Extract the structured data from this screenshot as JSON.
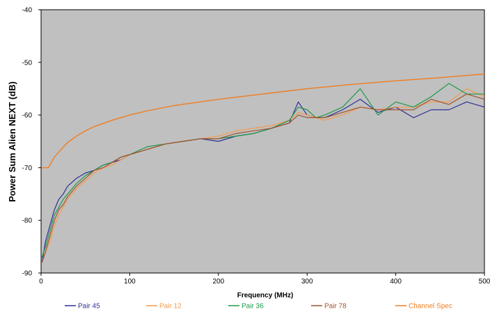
{
  "chart_data": {
    "type": "line",
    "title": "",
    "xlabel": "Frequency (MHz)",
    "ylabel": "Power Sum Alien NEXT (dB)",
    "xlim": [
      0,
      500
    ],
    "ylim": [
      -90,
      -40
    ],
    "x_ticks": [
      "0",
      "100",
      "200",
      "300",
      "400",
      "500"
    ],
    "y_ticks": [
      "-40",
      "-50",
      "-60",
      "-70",
      "-80",
      "-90"
    ],
    "grid": false,
    "plot_background": "#c0c0c0",
    "legend_position": "bottom",
    "series": [
      {
        "name": "Pair 45",
        "color": "#2e2e99",
        "x": [
          1,
          5,
          10,
          15,
          20,
          25,
          30,
          40,
          50,
          60,
          70,
          80,
          90,
          100,
          120,
          140,
          160,
          180,
          200,
          220,
          240,
          260,
          280,
          290,
          300,
          310,
          320,
          340,
          360,
          380,
          400,
          420,
          440,
          460,
          480,
          500
        ],
        "y": [
          -88,
          -84,
          -81,
          -78,
          -76,
          -75,
          -73.5,
          -72,
          -71,
          -70.5,
          -69.5,
          -69,
          -68.5,
          -67.5,
          -66.5,
          -65.5,
          -65,
          -64.5,
          -65,
          -64,
          -63.5,
          -62.5,
          -61.5,
          -57.5,
          -60,
          -60.5,
          -60.5,
          -59,
          -57,
          -59.5,
          -58.5,
          -60.5,
          -59,
          -59,
          -57.5,
          -58.5
        ]
      },
      {
        "name": "Pair 12",
        "color": "#f39a4c",
        "x": [
          1,
          5,
          10,
          15,
          20,
          25,
          30,
          40,
          50,
          60,
          70,
          80,
          90,
          100,
          120,
          140,
          160,
          180,
          200,
          220,
          240,
          260,
          280,
          290,
          300,
          310,
          320,
          340,
          360,
          380,
          400,
          420,
          440,
          460,
          480,
          500
        ],
        "y": [
          -88,
          -86,
          -84,
          -81,
          -79,
          -77.5,
          -76,
          -74,
          -72.5,
          -71,
          -70,
          -69.5,
          -68.5,
          -67.5,
          -66.5,
          -65.5,
          -65,
          -64.5,
          -64,
          -63,
          -62.5,
          -62,
          -61,
          -59.5,
          -60,
          -60.5,
          -61,
          -60,
          -58.5,
          -59,
          -58.5,
          -58.5,
          -57.5,
          -57.5,
          -55,
          -56.5
        ]
      },
      {
        "name": "Pair 36",
        "color": "#1a9a4a",
        "x": [
          1,
          5,
          10,
          15,
          20,
          25,
          30,
          40,
          50,
          60,
          70,
          80,
          90,
          100,
          120,
          140,
          160,
          180,
          200,
          220,
          240,
          260,
          280,
          290,
          300,
          310,
          320,
          340,
          360,
          380,
          400,
          420,
          440,
          460,
          480,
          500
        ],
        "y": [
          -87,
          -85,
          -82,
          -79,
          -77.5,
          -76,
          -75,
          -73,
          -71.5,
          -70.5,
          -69.5,
          -69,
          -68,
          -67.5,
          -66,
          -65.5,
          -65,
          -64.5,
          -64.5,
          -64,
          -63.5,
          -62.5,
          -61,
          -58.5,
          -59,
          -60.5,
          -60,
          -58.5,
          -55,
          -60,
          -57.5,
          -58.5,
          -56.5,
          -54,
          -56,
          -56
        ]
      },
      {
        "name": "Pair 78",
        "color": "#a3522b",
        "x": [
          1,
          5,
          10,
          15,
          20,
          25,
          30,
          40,
          50,
          60,
          70,
          80,
          90,
          100,
          120,
          140,
          160,
          180,
          200,
          220,
          240,
          260,
          280,
          290,
          300,
          310,
          320,
          340,
          360,
          380,
          400,
          420,
          440,
          460,
          480,
          500
        ],
        "y": [
          -88,
          -86,
          -83,
          -80,
          -78,
          -77,
          -75.5,
          -73.5,
          -72,
          -70.5,
          -70,
          -69,
          -68,
          -67.5,
          -66.5,
          -65.5,
          -65,
          -64.5,
          -64.5,
          -63.5,
          -63,
          -62.5,
          -61.5,
          -60,
          -60.5,
          -60.5,
          -60.5,
          -59.5,
          -58.5,
          -59,
          -59,
          -59,
          -57,
          -58,
          -56,
          -57
        ]
      },
      {
        "name": "Channel Spec",
        "color": "#ef7c1f",
        "x": [
          1,
          5,
          8,
          10,
          15,
          20,
          30,
          40,
          50,
          60,
          80,
          100,
          120,
          150,
          200,
          250,
          300,
          350,
          400,
          450,
          500
        ],
        "y": [
          -70,
          -70,
          -70,
          -69.5,
          -68,
          -67,
          -65.2,
          -64,
          -63,
          -62.2,
          -61,
          -60,
          -59.2,
          -58.2,
          -57,
          -56,
          -55,
          -54.2,
          -53.5,
          -52.9,
          -52.2
        ]
      }
    ]
  }
}
